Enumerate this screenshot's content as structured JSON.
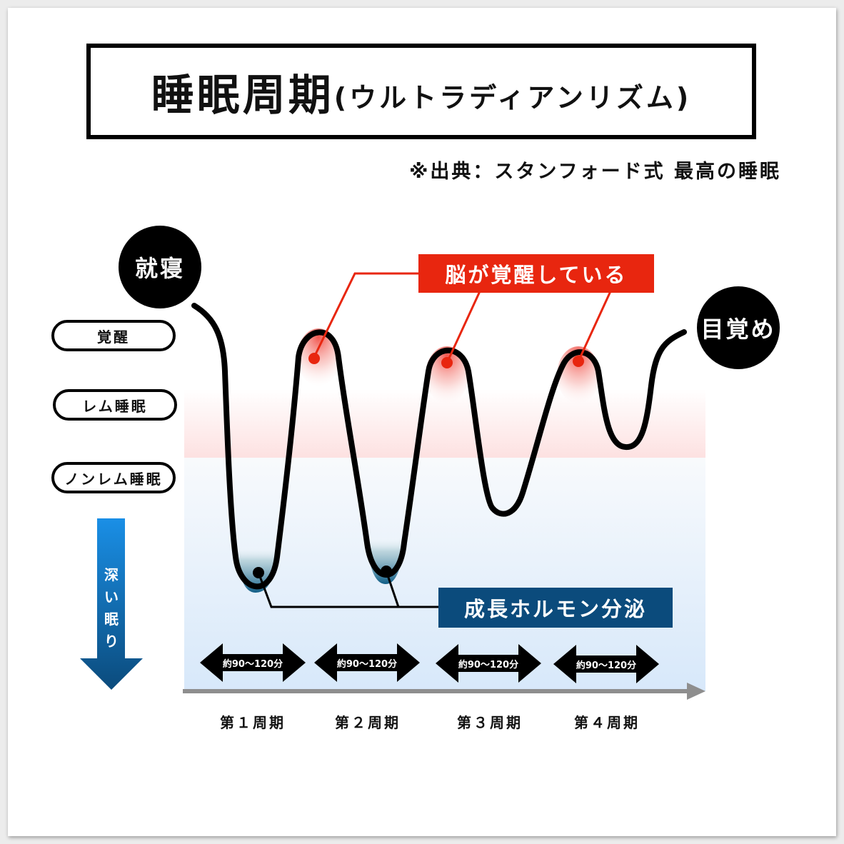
{
  "header": {
    "title_main": "睡眠周期",
    "title_sub": "(ウルトラディアンリズム)",
    "source": "※出典：スタンフォード式 最高の睡眠"
  },
  "markers": {
    "start": "就寝",
    "end": "目覚め"
  },
  "levels": [
    {
      "label": "覚醒"
    },
    {
      "label": "レム睡眠"
    },
    {
      "label": "ノンレム睡眠"
    }
  ],
  "depth_arrow": {
    "label": "深い眠り",
    "color_top": "#1a8fe6",
    "color_bottom": "#0b4b7c"
  },
  "callouts": {
    "brain_awake": "脳が覚醒している",
    "growth_hormone": "成長ホルモン分泌",
    "brain_awake_color": "#e8260f",
    "growth_hormone_color": "#0b4b7c"
  },
  "cycles": [
    {
      "label": "第１周期",
      "duration": "約90〜120分"
    },
    {
      "label": "第２周期",
      "duration": "約90〜120分"
    },
    {
      "label": "第３周期",
      "duration": "約90〜120分"
    },
    {
      "label": "第４周期",
      "duration": "約90〜120分"
    }
  ],
  "colors": {
    "rem_band": "#fde1e1",
    "nonrem_band": "#d7e8fa",
    "axis": "#8e8e8e"
  }
}
